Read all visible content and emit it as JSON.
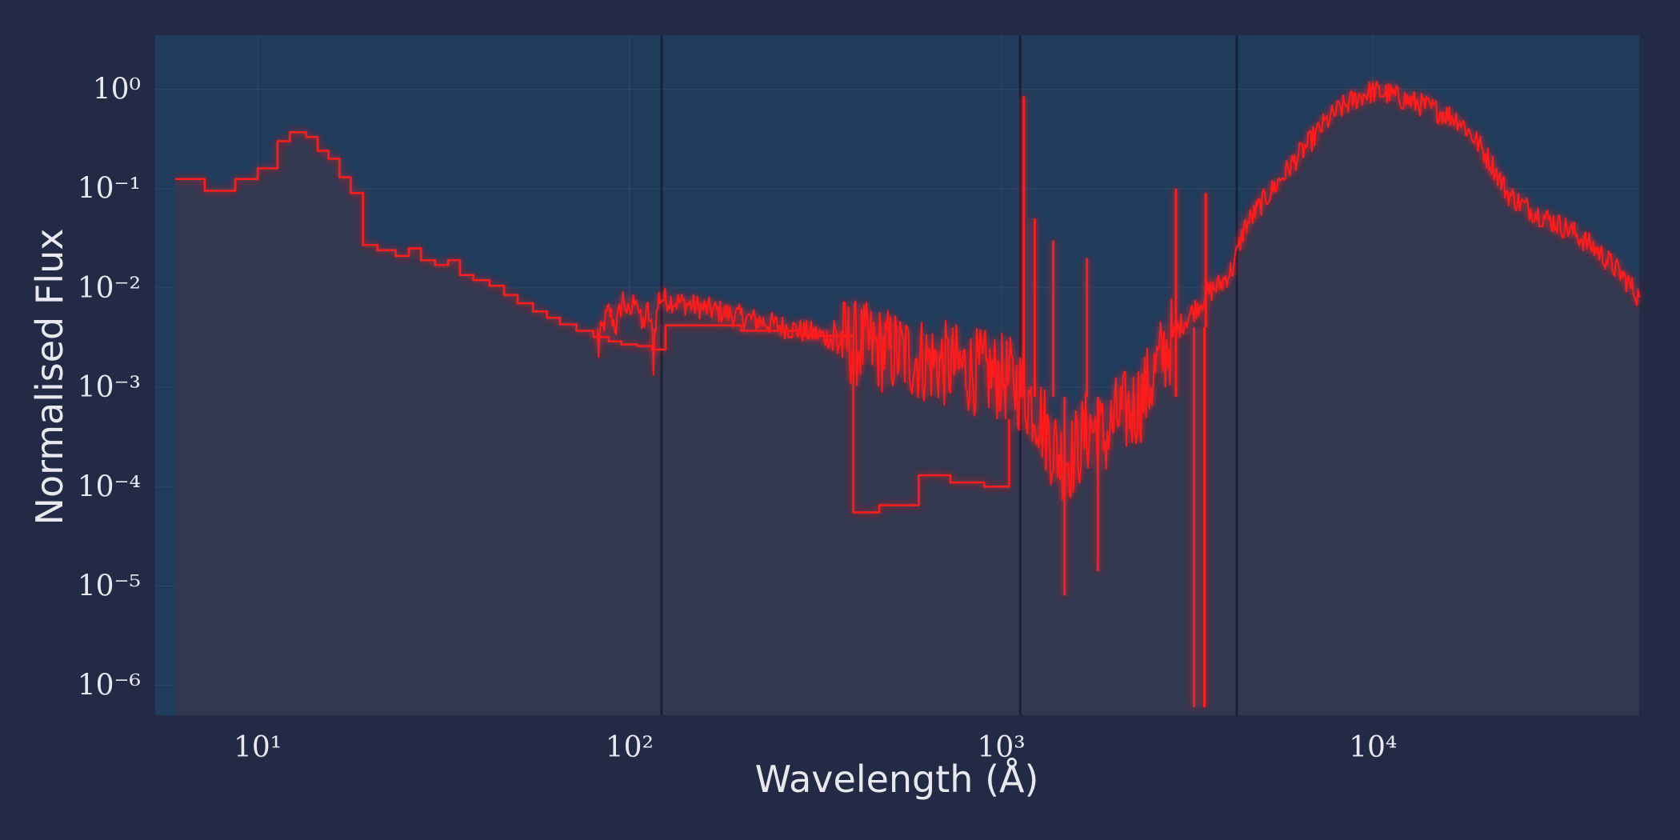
{
  "chart_data": {
    "type": "line",
    "title": "",
    "xlabel": "Wavelength (Å)",
    "ylabel": "Normalised Flux",
    "xscale": "log",
    "yscale": "log",
    "xlim": [
      5.3,
      52000
    ],
    "ylim": [
      5e-07,
      3.5
    ],
    "grid": true,
    "legend": "none",
    "colors": {
      "background": "#222a45",
      "plot_area": "#1f3c5c",
      "fill": "#33384f",
      "line": "#ff1a1a",
      "grid": "#3b5472",
      "divider": "#1a2038",
      "text": "#e8e8ee"
    },
    "x_ticks": [
      {
        "value": 10,
        "label": "10¹"
      },
      {
        "value": 100,
        "label": "10²"
      },
      {
        "value": 1000,
        "label": "10³"
      },
      {
        "value": 10000,
        "label": "10⁴"
      }
    ],
    "y_ticks": [
      {
        "value": 1,
        "label": "10⁰"
      },
      {
        "value": 0.1,
        "label": "10⁻¹"
      },
      {
        "value": 0.01,
        "label": "10⁻²"
      },
      {
        "value": 0.001,
        "label": "10⁻³"
      },
      {
        "value": 0.0001,
        "label": "10⁻⁴"
      },
      {
        "value": 1e-05,
        "label": "10⁻⁵"
      },
      {
        "value": 1e-06,
        "label": "10⁻⁶"
      }
    ],
    "region_boundaries": [
      122,
      1125,
      4300
    ],
    "series": [
      {
        "style": "step",
        "x": [
          6.0,
          7.2,
          8.7,
          10.0,
          11.3,
          12.2,
          13.5,
          14.5,
          15.5,
          16.6,
          17.8,
          19.2,
          21.0,
          23.5,
          25.5,
          27.5,
          30.0,
          32.5,
          35.0,
          38.0,
          42.0,
          46.0,
          50.0,
          55.0,
          60.0,
          65.0,
          72.0,
          80.0,
          88.0,
          95.0,
          105.0,
          115.0,
          125.0,
          200.0,
          290.0,
          400.0,
          470.0,
          600.0,
          730.0,
          900.0,
          1050.0
        ],
        "y": [
          0.125,
          0.095,
          0.125,
          0.16,
          0.3,
          0.37,
          0.33,
          0.24,
          0.2,
          0.13,
          0.09,
          0.027,
          0.024,
          0.021,
          0.025,
          0.019,
          0.017,
          0.019,
          0.0135,
          0.012,
          0.0105,
          0.0085,
          0.007,
          0.0058,
          0.005,
          0.0043,
          0.0037,
          0.0032,
          0.0029,
          0.0027,
          0.0026,
          0.0024,
          0.0042,
          0.0037,
          0.0033,
          5.5e-05,
          6.5e-05,
          0.00013,
          0.00011,
          0.0001,
          0.00048
        ]
      },
      {
        "style": "noisy",
        "x": [
          82,
          88,
          92,
          96,
          100,
          104,
          108,
          112,
          116,
          120,
          1050,
          1150,
          1250,
          1350,
          1450,
          1550,
          1650,
          1750,
          1900,
          2050,
          2250,
          2450,
          2700,
          3000,
          3300,
          3600,
          3900,
          4200,
          4500,
          5000,
          5600,
          6200,
          6800,
          7400,
          8000,
          8700,
          9500,
          10000,
          11000,
          12000,
          13500,
          15000,
          17000,
          19000,
          21000,
          23000,
          25000,
          28000,
          31000,
          34000,
          37000,
          40000,
          44000,
          48000,
          52000
        ],
        "y": [
          0.0028,
          0.006,
          0.004,
          0.008,
          0.005,
          0.009,
          0.004,
          0.006,
          0.003,
          0.008,
          0.0012,
          0.0009,
          0.0006,
          0.0003,
          0.0002,
          0.0002,
          0.0003,
          0.0004,
          0.0003,
          0.0005,
          0.0006,
          0.0009,
          0.002,
          0.004,
          0.006,
          0.009,
          0.011,
          0.016,
          0.04,
          0.07,
          0.12,
          0.2,
          0.3,
          0.45,
          0.6,
          0.75,
          0.9,
          0.95,
          0.9,
          0.8,
          0.7,
          0.6,
          0.5,
          0.3,
          0.17,
          0.09,
          0.07,
          0.055,
          0.045,
          0.038,
          0.03,
          0.024,
          0.017,
          0.012,
          0.008
        ]
      }
    ]
  }
}
